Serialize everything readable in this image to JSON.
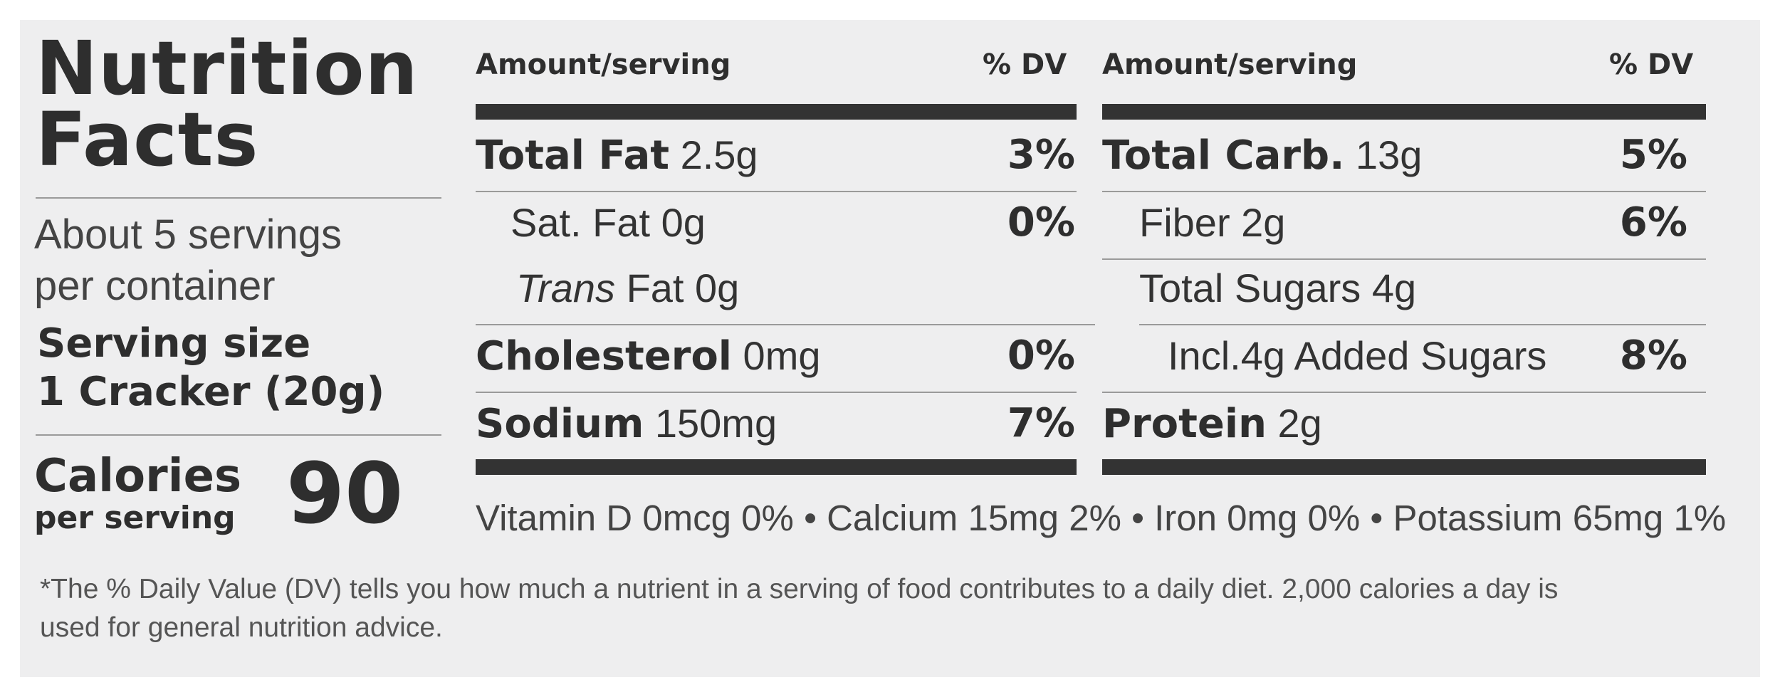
{
  "panel": {
    "title_line1": "Nutrition",
    "title_line2": "Facts",
    "servings_line1": "About 5 servings",
    "servings_line2": "per container",
    "serving_size_label": "Serving size",
    "serving_size_value": "1 Cracker (20g)",
    "calories_label": "Calories",
    "calories_sub": "per serving",
    "calories_value": "90"
  },
  "left_column": {
    "header_amount": "Amount/serving",
    "header_dv": "% DV",
    "rows": [
      {
        "name": "Total Fat",
        "amount": "2.5g",
        "dv": "3%"
      },
      {
        "name": "Sat. Fat",
        "amount": "0g",
        "dv": "0%"
      },
      {
        "name": "Trans",
        "amount": "Fat 0g",
        "dv": ""
      },
      {
        "name": "Cholesterol",
        "amount": "0mg",
        "dv": "0%"
      },
      {
        "name": "Sodium",
        "amount": "150mg",
        "dv": "7%"
      }
    ]
  },
  "right_column": {
    "header_amount": "Amount/serving",
    "header_dv": "% DV",
    "rows": [
      {
        "name": "Total Carb.",
        "amount": "13g",
        "dv": "5%"
      },
      {
        "name": "Fiber",
        "amount": "2g",
        "dv": "6%"
      },
      {
        "name": "Total Sugars",
        "amount": "4g",
        "dv": ""
      },
      {
        "name": "Incl.4g Added Sugars",
        "amount": "",
        "dv": "8%"
      },
      {
        "name": "Protein",
        "amount": "2g",
        "dv": ""
      }
    ]
  },
  "vitamins": "Vitamin D 0mcg 0% • Calcium 15mg 2% • Iron 0mg 0% • Potassium 65mg 1%",
  "footnote_line1": "*The % Daily Value (DV) tells you how much a nutrient in a serving of food contributes to a daily diet. 2,000 calories a day is",
  "footnote_line2": "used for general nutrition advice."
}
